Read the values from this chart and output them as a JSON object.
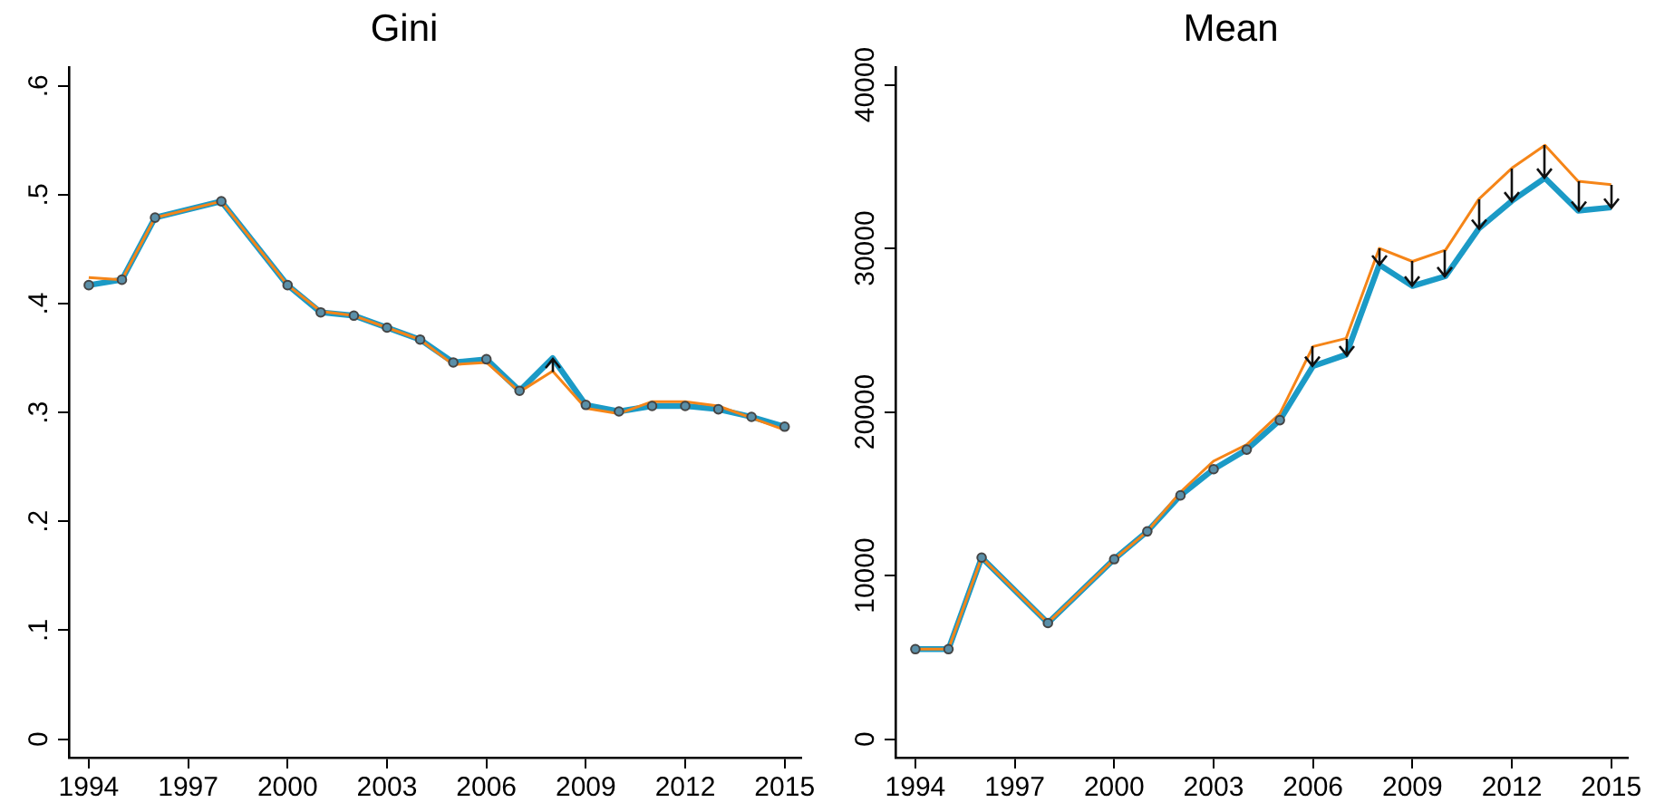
{
  "chart_data": [
    {
      "type": "line",
      "title": "Gini",
      "x": [
        1994,
        1995,
        1996,
        1998,
        2000,
        2001,
        2002,
        2003,
        2004,
        2005,
        2006,
        2007,
        2008,
        2009,
        2010,
        2011,
        2012,
        2013,
        2014,
        2015
      ],
      "xlim": [
        1993.4,
        2015.5
      ],
      "xticks": [
        1994,
        1997,
        2000,
        2003,
        2006,
        2009,
        2012,
        2015
      ],
      "ylim": [
        -0.017,
        0.617
      ],
      "yticks": [
        {
          "value": 0,
          "label": "0"
        },
        {
          "value": 0.1,
          "label": ".1"
        },
        {
          "value": 0.2,
          "label": ".2"
        },
        {
          "value": 0.3,
          "label": ".3"
        },
        {
          "value": 0.4,
          "label": ".4"
        },
        {
          "value": 0.5,
          "label": ".5"
        },
        {
          "value": 0.6,
          "label": ".6"
        }
      ],
      "grid": false,
      "legend": false,
      "line_style": "solid",
      "series": [
        {
          "color": "#1b9ac6",
          "values": [
            0.417,
            0.422,
            0.479,
            0.494,
            0.417,
            0.392,
            0.389,
            0.378,
            0.367,
            0.346,
            0.349,
            0.32,
            0.35,
            0.307,
            0.301,
            0.306,
            0.306,
            0.303,
            0.296,
            0.287
          ]
        },
        {
          "color": "#f58518",
          "values": [
            0.424,
            0.422,
            0.479,
            0.494,
            0.417,
            0.393,
            0.389,
            0.378,
            0.367,
            0.344,
            0.346,
            0.319,
            0.338,
            0.304,
            0.299,
            0.31,
            0.31,
            0.306,
            0.295,
            0.284
          ]
        },
        {
          "type": "scatter",
          "color": "#454545",
          "marker": "circle",
          "values": [
            0.417,
            0.422,
            0.479,
            0.494,
            0.417,
            0.392,
            0.389,
            0.378,
            0.367,
            0.346,
            0.349,
            0.32,
            null,
            0.307,
            0.301,
            0.306,
            0.306,
            0.303,
            0.296,
            0.287
          ]
        }
      ]
    },
    {
      "type": "line",
      "title": "Mean",
      "x": [
        1994,
        1995,
        1996,
        1998,
        2000,
        2001,
        2002,
        2003,
        2004,
        2005,
        2006,
        2007,
        2008,
        2009,
        2010,
        2011,
        2012,
        2013,
        2014,
        2015
      ],
      "xlim": [
        1993.4,
        2015.5
      ],
      "xticks": [
        1994,
        1997,
        2000,
        2003,
        2006,
        2009,
        2012,
        2015
      ],
      "ylim": [
        -1130,
        41060
      ],
      "yticks": [
        0,
        10000,
        20000,
        30000,
        40000
      ],
      "grid": false,
      "legend": false,
      "line_style": "solid",
      "series": [
        {
          "color": "#1b9ac6",
          "values": [
            5500,
            5500,
            11100,
            7100,
            11000,
            12700,
            14900,
            16500,
            17700,
            19500,
            22800,
            23500,
            29000,
            27700,
            28300,
            31200,
            32900,
            34300,
            32300,
            32500
          ]
        },
        {
          "color": "#f58518",
          "values": [
            5500,
            5500,
            11100,
            7100,
            11000,
            12700,
            15100,
            17000,
            18000,
            19900,
            24000,
            24500,
            30000,
            29200,
            29900,
            33000,
            34900,
            36300,
            34100,
            33900
          ]
        },
        {
          "type": "scatter",
          "color": "#454545",
          "marker": "circle",
          "values": [
            5500,
            5500,
            11100,
            7100,
            11000,
            12700,
            14900,
            16500,
            17700,
            19500,
            null,
            null,
            null,
            null,
            null,
            null,
            null,
            null,
            null,
            null
          ]
        }
      ]
    }
  ]
}
